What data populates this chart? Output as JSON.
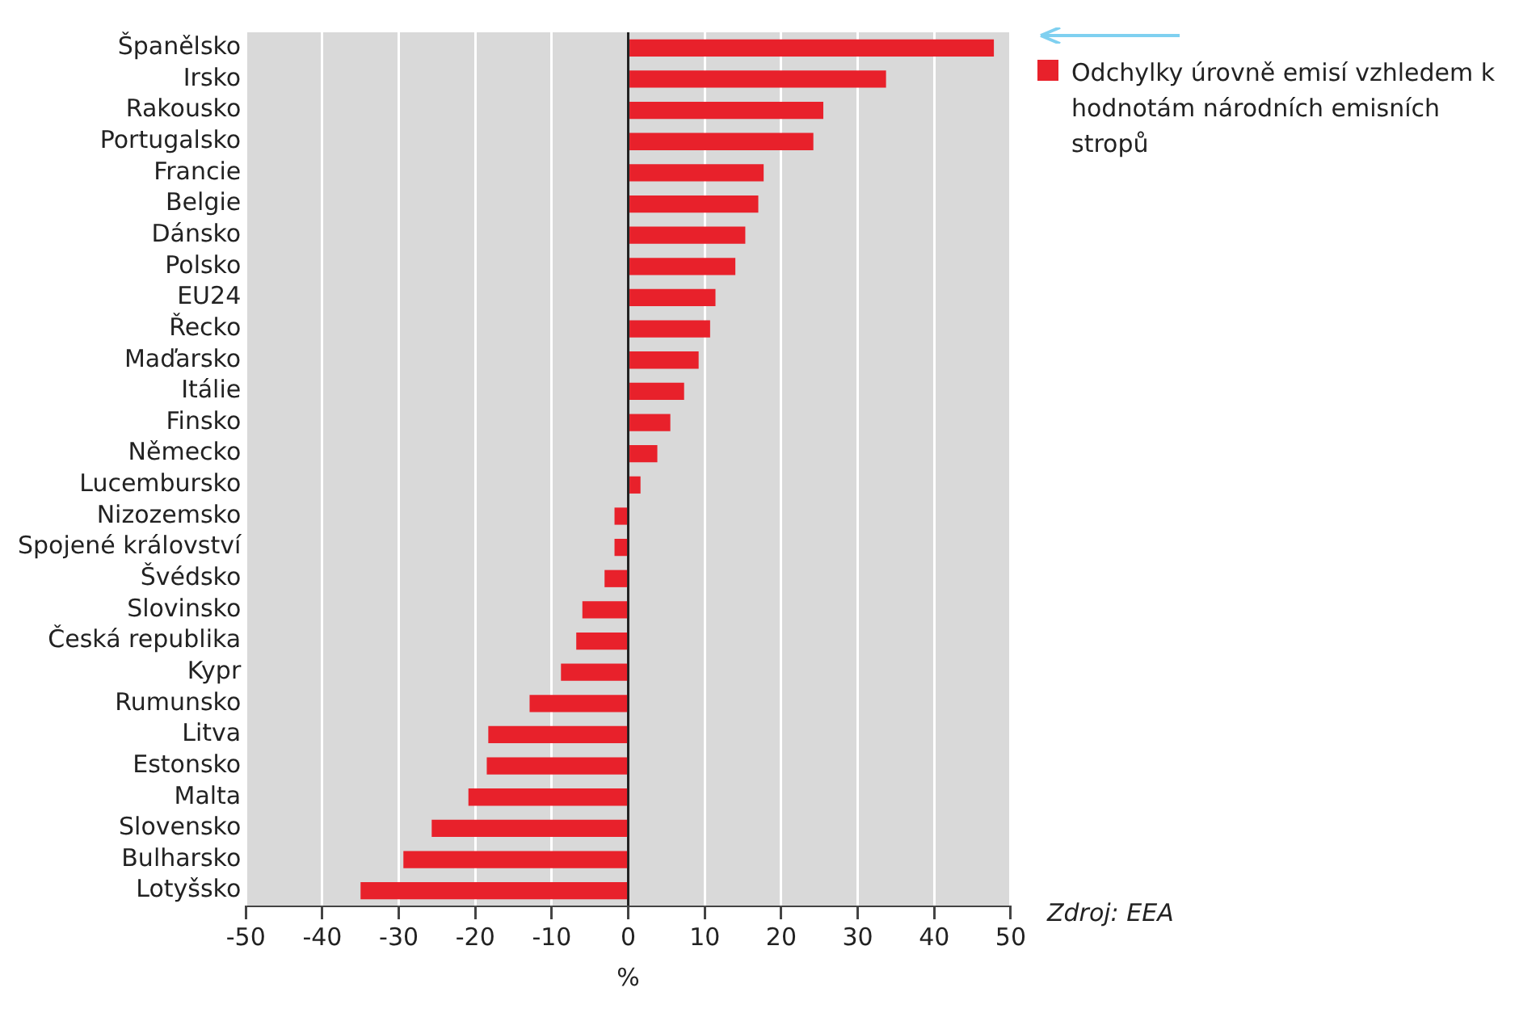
{
  "chart_data": {
    "type": "bar",
    "orientation": "horizontal",
    "categories": [
      "Španělsko",
      "Irsko",
      "Rakousko",
      "Portugalsko",
      "Francie",
      "Belgie",
      "Dánsko",
      "Polsko",
      "EU24",
      "Řecko",
      "Maďarsko",
      "Itálie",
      "Finsko",
      "Německo",
      "Lucembursko",
      "Nizozemsko",
      "Spojené království",
      "Švédsko",
      "Slovinsko",
      "Česká republika",
      "Kypr",
      "Rumunsko",
      "Litva",
      "Estonsko",
      "Malta",
      "Slovensko",
      "Bulharsko",
      "Lotyšsko"
    ],
    "series": [
      {
        "name": "Odchylky úrovně emisí vzhledem k hodnotám národních emisních stropů",
        "color": "#e8212b",
        "values": [
          47.8,
          33.7,
          25.5,
          24.2,
          17.7,
          17,
          15.3,
          14,
          11.4,
          10.7,
          9.2,
          7.3,
          5.5,
          3.8,
          1.6,
          -1.8,
          -1.8,
          -3.1,
          -6,
          -6.8,
          -8.8,
          -12.9,
          -18.3,
          -18.5,
          -20.9,
          -25.7,
          -29.4,
          -35
        ]
      }
    ],
    "xlim": [
      -50,
      50
    ],
    "xticks": [
      -50,
      -40,
      -30,
      -20,
      -10,
      0,
      10,
      20,
      30,
      40,
      50
    ],
    "xlabel": "%",
    "grid": "x",
    "legend": "top right",
    "annotations": [
      "Zdroj: EEA"
    ]
  }
}
